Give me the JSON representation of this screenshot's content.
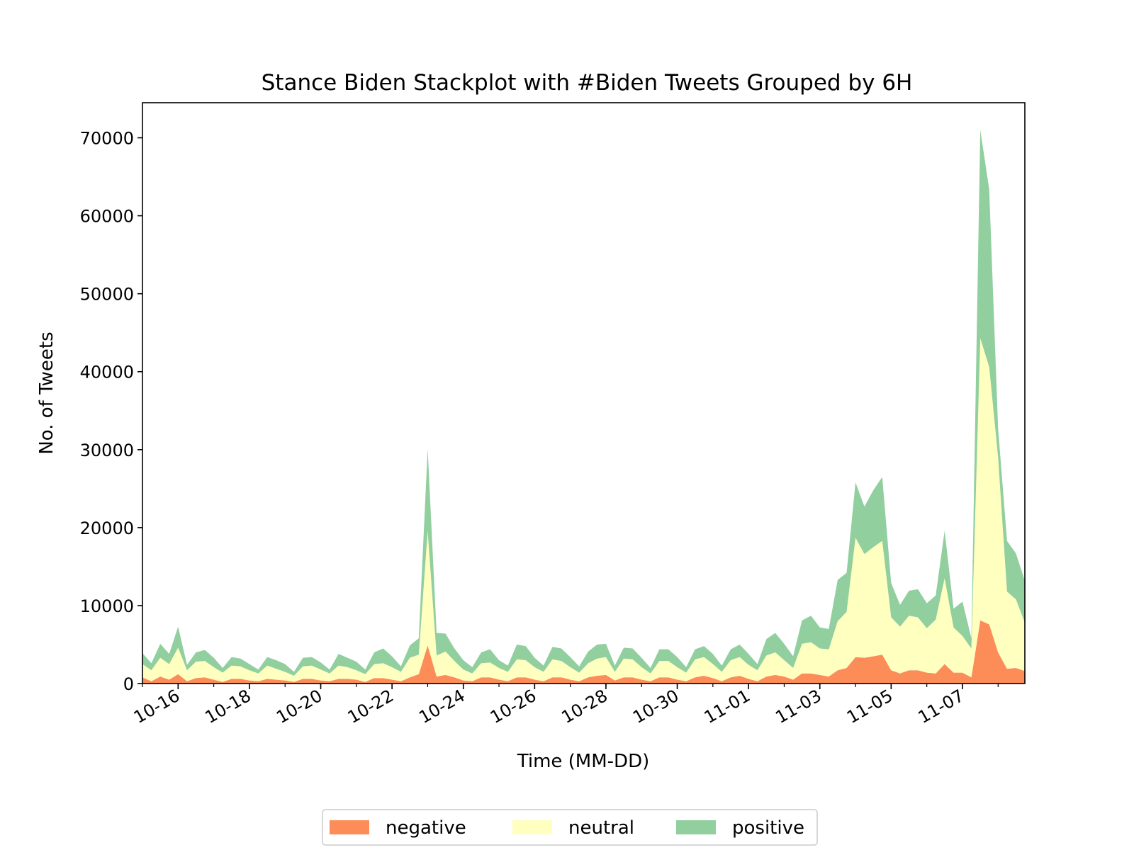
{
  "chart_data": {
    "type": "area",
    "stacked": true,
    "title": "Stance Biden Stackplot with #Biden Tweets Grouped by 6H",
    "xlabel": "Time (MM-DD)",
    "ylabel": "No. of Tweets",
    "ylim": [
      0,
      74500
    ],
    "y_ticks": [
      0,
      10000,
      20000,
      30000,
      40000,
      50000,
      60000,
      70000
    ],
    "x_tick_labels": [
      "10-16",
      "10-18",
      "10-20",
      "10-22",
      "10-24",
      "10-26",
      "10-28",
      "10-30",
      "11-01",
      "11-03",
      "11-05",
      "11-07"
    ],
    "x_tick_index": [
      4,
      12,
      20,
      28,
      36,
      44,
      52,
      60,
      68,
      76,
      84,
      92
    ],
    "x_minor_tick_step": 4,
    "x_count": 100,
    "grid": false,
    "legend_position": "bottom-center",
    "colors": {
      "negative": "#fc8d59",
      "neutral": "#ffffbf",
      "positive": "#91cf9f"
    },
    "series": [
      {
        "name": "negative",
        "values": [
          800,
          300,
          900,
          500,
          1200,
          300,
          700,
          800,
          500,
          200,
          600,
          600,
          400,
          300,
          600,
          500,
          400,
          200,
          600,
          600,
          400,
          300,
          600,
          600,
          500,
          200,
          700,
          700,
          500,
          300,
          800,
          1200,
          4900,
          900,
          1100,
          800,
          400,
          300,
          800,
          800,
          500,
          300,
          800,
          800,
          500,
          300,
          800,
          800,
          500,
          300,
          800,
          1000,
          1100,
          400,
          800,
          800,
          500,
          300,
          800,
          800,
          500,
          300,
          800,
          1000,
          700,
          300,
          800,
          1000,
          600,
          300,
          900,
          1100,
          900,
          500,
          1300,
          1300,
          1100,
          900,
          1700,
          2000,
          3400,
          3300,
          3500,
          3700,
          1700,
          1300,
          1700,
          1700,
          1400,
          1300,
          2500,
          1400,
          1400,
          800,
          8100,
          7600,
          4000,
          1900,
          2000,
          1600
        ]
      },
      {
        "name": "neutral",
        "values": [
          1700,
          1400,
          2400,
          2000,
          3400,
          1400,
          2100,
          2100,
          1600,
          1200,
          1700,
          1600,
          1300,
          1000,
          1700,
          1400,
          1100,
          800,
          1600,
          1700,
          1400,
          1000,
          1700,
          1500,
          1200,
          1000,
          1800,
          1900,
          1600,
          1200,
          2500,
          2500,
          14700,
          2700,
          3000,
          2100,
          1400,
          1000,
          1800,
          1900,
          1500,
          1200,
          2300,
          2200,
          1600,
          1200,
          2300,
          2100,
          1600,
          1100,
          1800,
          2200,
          2300,
          1100,
          2400,
          2300,
          1600,
          1000,
          2100,
          2100,
          1600,
          1100,
          2300,
          2400,
          1800,
          1200,
          2200,
          2400,
          1800,
          1400,
          2700,
          2900,
          2100,
          1500,
          3800,
          4000,
          3400,
          3500,
          6300,
          7200,
          15300,
          13300,
          14000,
          14600,
          6800,
          6000,
          7000,
          6800,
          5700,
          6900,
          11000,
          5800,
          4700,
          3700,
          36200,
          33000,
          25000,
          9900,
          8800,
          6200
        ]
      },
      {
        "name": "positive",
        "values": [
          1400,
          900,
          1800,
          1300,
          2700,
          700,
          1200,
          1400,
          1200,
          600,
          1100,
          1000,
          800,
          500,
          1100,
          1100,
          1000,
          500,
          1100,
          1100,
          900,
          500,
          1500,
          1200,
          1100,
          600,
          1500,
          1900,
          1400,
          700,
          1600,
          2100,
          10500,
          2900,
          2300,
          1600,
          1200,
          800,
          1400,
          1700,
          1000,
          800,
          1900,
          1800,
          1200,
          800,
          1600,
          1600,
          1300,
          800,
          1500,
          1800,
          1700,
          800,
          1400,
          1400,
          1200,
          700,
          1500,
          1500,
          1300,
          700,
          1300,
          1400,
          1300,
          800,
          1400,
          1600,
          1400,
          800,
          2100,
          2500,
          2100,
          1500,
          3000,
          3400,
          2700,
          2600,
          5300,
          5000,
          7100,
          6100,
          7300,
          8200,
          4400,
          2800,
          3200,
          3600,
          3200,
          3100,
          6100,
          2400,
          4400,
          1300,
          26700,
          22800,
          3700,
          6500,
          5900,
          5400
        ]
      }
    ]
  }
}
